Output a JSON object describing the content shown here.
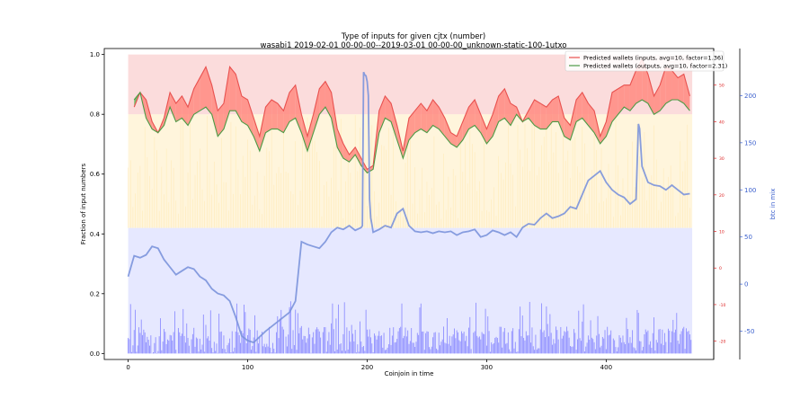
{
  "chart_data": {
    "type": "line",
    "title": "Type of inputs for given cjtx (number)",
    "subtitle": "wasabi1 2019-02-01 00-00-00--2019-03-01 00-00-00_unknown-static-100-1utxo",
    "xlabel": "Coinjoin in time",
    "ylabel": "Fraction of input numbers",
    "ylabel_right_outer": "btc in mix",
    "xlim": [
      -20,
      490
    ],
    "ylim": [
      -0.02,
      1.02
    ],
    "ylim_right_inner": [
      -25,
      60
    ],
    "ylim_right_outer": [
      -80,
      250
    ],
    "x_ticks": [
      0,
      100,
      200,
      300,
      400
    ],
    "y_ticks": [
      0.0,
      0.2,
      0.4,
      0.6,
      0.8,
      1.0
    ],
    "y_ticks_right_inner": [
      -20,
      -10,
      0,
      10,
      20,
      30,
      40,
      50
    ],
    "y_ticks_right_outer": [
      -50,
      0,
      50,
      100,
      150,
      200
    ],
    "legend_position": "top-right",
    "colors": {
      "inputs_line": "#e8514f",
      "outputs_line": "#4c9a45",
      "fill_inputs_above": "#ff8a80",
      "fill_outputs_above": "#5fb85a",
      "btc_line": "#7b93dc",
      "top_band": "#f7c0c0",
      "middle_band": "#ffe29a",
      "bottom_band": "#c8ccff",
      "bottom_bars": "#8f8fff"
    },
    "series": [
      {
        "name": "Predicted wallets (inputs, avg=10, factor=1.36)",
        "axis": "right_inner",
        "x": [
          5,
          10,
          15,
          20,
          25,
          30,
          35,
          40,
          45,
          50,
          55,
          60,
          65,
          70,
          75,
          80,
          85,
          90,
          95,
          100,
          105,
          110,
          115,
          120,
          125,
          130,
          135,
          140,
          145,
          150,
          155,
          160,
          165,
          170,
          175,
          180,
          185,
          190,
          195,
          200,
          205,
          210,
          215,
          220,
          225,
          230,
          235,
          240,
          245,
          250,
          255,
          260,
          265,
          270,
          275,
          280,
          285,
          290,
          295,
          300,
          305,
          310,
          315,
          320,
          325,
          330,
          335,
          340,
          345,
          350,
          355,
          360,
          365,
          370,
          375,
          380,
          385,
          390,
          395,
          400,
          405,
          410,
          415,
          420,
          425,
          430,
          435,
          440,
          445,
          450,
          455,
          460,
          465,
          470
        ],
        "y": [
          44,
          48,
          46,
          40,
          37,
          41,
          48,
          45,
          47,
          44,
          49,
          52,
          55,
          50,
          43,
          45,
          55,
          53,
          47,
          46,
          41,
          36,
          44,
          46,
          45,
          43,
          48,
          50,
          42,
          36,
          42,
          49,
          51,
          48,
          38,
          34,
          31,
          33,
          30,
          27,
          28,
          43,
          47,
          45,
          39,
          32,
          41,
          43,
          45,
          43,
          46,
          44,
          41,
          37,
          36,
          40,
          44,
          46,
          42,
          38,
          42,
          47,
          49,
          45,
          44,
          40,
          43,
          46,
          45,
          44,
          46,
          47,
          41,
          39,
          46,
          48,
          45,
          43,
          36,
          40,
          48,
          49,
          50,
          50,
          54,
          57,
          53,
          47,
          50,
          55,
          54,
          52,
          53,
          47
        ]
      },
      {
        "name": "Predicted wallets (outputs, avg=10, factor=2.31)",
        "axis": "right_inner",
        "x": [
          5,
          10,
          15,
          20,
          25,
          30,
          35,
          40,
          45,
          50,
          55,
          60,
          65,
          70,
          75,
          80,
          85,
          90,
          95,
          100,
          105,
          110,
          115,
          120,
          125,
          130,
          135,
          140,
          145,
          150,
          155,
          160,
          165,
          170,
          175,
          180,
          185,
          190,
          195,
          200,
          205,
          210,
          215,
          220,
          225,
          230,
          235,
          240,
          245,
          250,
          255,
          260,
          265,
          270,
          275,
          280,
          285,
          290,
          295,
          300,
          305,
          310,
          315,
          320,
          325,
          330,
          335,
          340,
          345,
          350,
          355,
          360,
          365,
          370,
          375,
          380,
          385,
          390,
          395,
          400,
          405,
          410,
          415,
          420,
          425,
          430,
          435,
          440,
          445,
          450,
          455,
          460,
          465,
          470
        ],
        "y": [
          46,
          48,
          41,
          38,
          37,
          39,
          44,
          40,
          41,
          39,
          42,
          43,
          44,
          42,
          36,
          38,
          43,
          43,
          40,
          39,
          36,
          32,
          37,
          38,
          38,
          37,
          40,
          41,
          37,
          32,
          37,
          42,
          44,
          41,
          33,
          30,
          29,
          31,
          28,
          26,
          27,
          37,
          41,
          40,
          35,
          30,
          35,
          37,
          38,
          37,
          39,
          38,
          36,
          34,
          33,
          35,
          38,
          39,
          37,
          34,
          36,
          40,
          41,
          39,
          42,
          40,
          41,
          39,
          38,
          38,
          40,
          40,
          36,
          35,
          40,
          41,
          39,
          37,
          34,
          36,
          40,
          42,
          44,
          43,
          45,
          46,
          45,
          42,
          43,
          45,
          46,
          46,
          45,
          43
        ]
      },
      {
        "name": "btc in mix",
        "axis": "right_outer",
        "x": [
          0,
          5,
          10,
          15,
          20,
          25,
          30,
          35,
          40,
          45,
          50,
          55,
          60,
          65,
          70,
          75,
          80,
          85,
          90,
          95,
          100,
          105,
          110,
          115,
          120,
          125,
          130,
          135,
          140,
          145,
          150,
          155,
          160,
          165,
          170,
          175,
          180,
          185,
          190,
          195,
          196,
          197,
          198,
          199,
          200,
          201,
          202,
          203,
          204,
          205,
          210,
          215,
          220,
          225,
          230,
          235,
          240,
          245,
          250,
          255,
          260,
          265,
          270,
          275,
          280,
          285,
          290,
          295,
          300,
          305,
          310,
          315,
          320,
          325,
          330,
          335,
          340,
          345,
          350,
          355,
          360,
          365,
          370,
          375,
          380,
          385,
          390,
          395,
          400,
          405,
          410,
          415,
          420,
          425,
          427,
          428,
          430,
          435,
          440,
          445,
          450,
          455,
          460,
          465,
          470
        ],
        "y": [
          8,
          30,
          28,
          31,
          40,
          38,
          26,
          18,
          10,
          14,
          18,
          16,
          8,
          4,
          -5,
          -10,
          -12,
          -18,
          -35,
          -55,
          -60,
          -62,
          -56,
          -50,
          -45,
          -40,
          -35,
          -30,
          -18,
          45,
          42,
          40,
          38,
          45,
          55,
          60,
          58,
          62,
          57,
          60,
          62,
          225,
          222,
          221,
          215,
          200,
          90,
          70,
          63,
          55,
          58,
          62,
          60,
          75,
          80,
          62,
          56,
          55,
          56,
          54,
          56,
          55,
          56,
          52,
          55,
          56,
          58,
          50,
          52,
          57,
          55,
          52,
          55,
          50,
          60,
          64,
          63,
          70,
          75,
          70,
          72,
          75,
          82,
          80,
          95,
          110,
          115,
          120,
          108,
          100,
          95,
          92,
          85,
          90,
          170,
          165,
          125,
          108,
          105,
          104,
          100,
          105,
          100,
          95,
          96
        ]
      }
    ]
  }
}
